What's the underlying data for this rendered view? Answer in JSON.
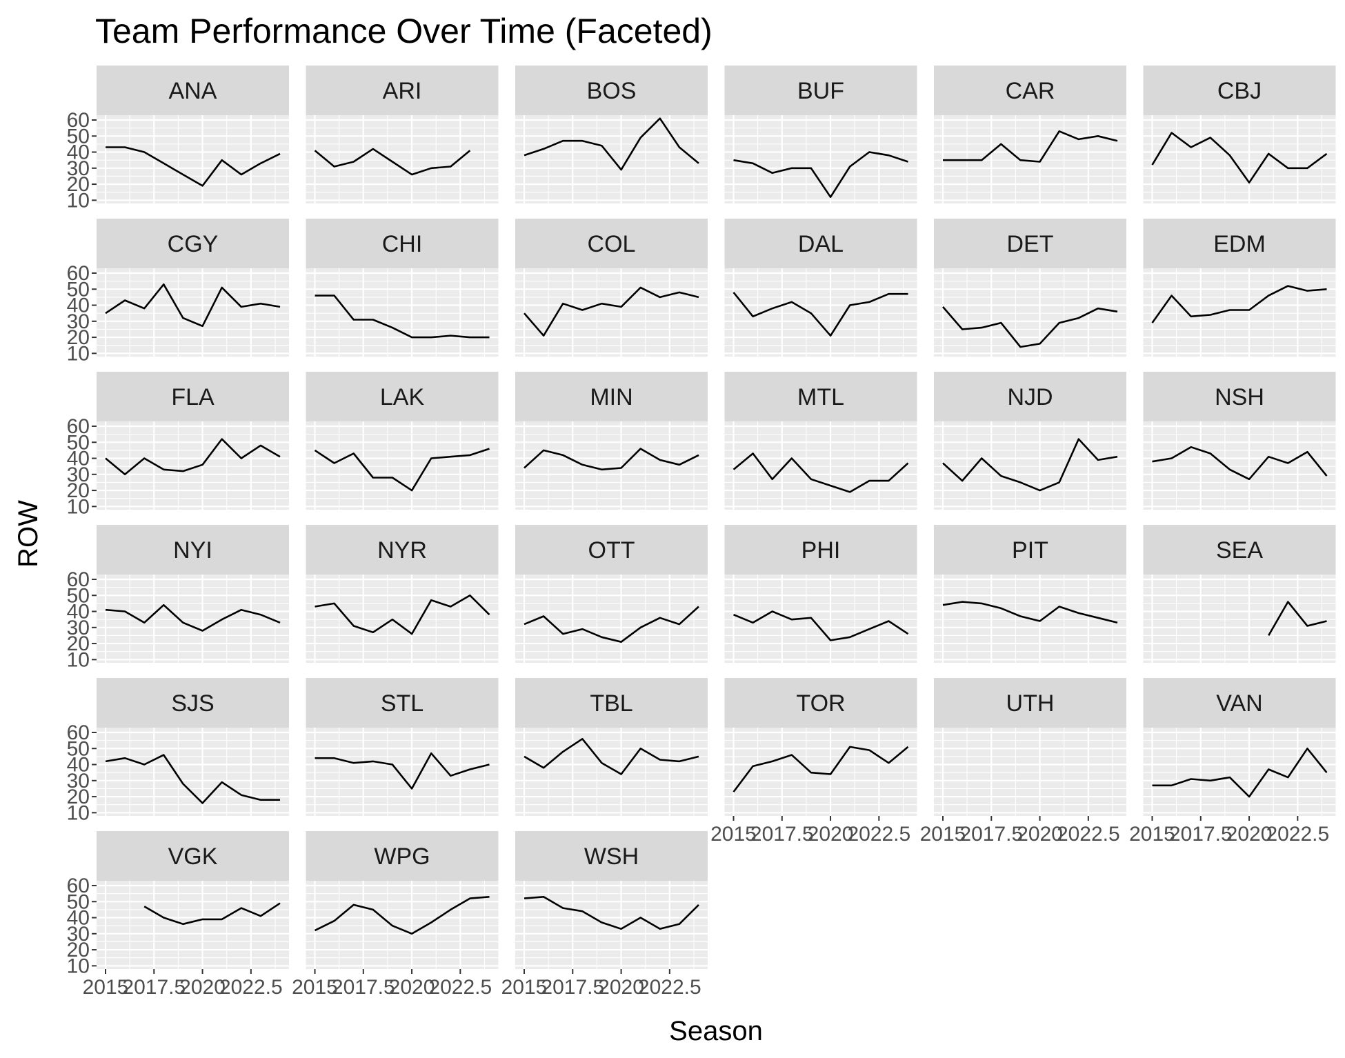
{
  "chart_data": {
    "type": "line",
    "title": "Team Performance Over Time (Faceted)",
    "xlabel": "Season",
    "ylabel": "ROW",
    "facet_layout": "6 columns, strip labels on top",
    "grid": true,
    "xlim": [
      2015,
      2024
    ],
    "ylim": [
      8,
      63
    ],
    "x_ticks": [
      2015,
      2017.5,
      2020,
      2022.5
    ],
    "x_tick_labels": [
      "2015",
      "2017.5",
      "2020",
      "2022.5"
    ],
    "y_ticks": [
      10,
      20,
      30,
      40,
      50,
      60
    ],
    "y_tick_labels": [
      "10",
      "20",
      "30",
      "40",
      "50",
      "60"
    ],
    "line_color": "#000000",
    "panel_background": "#ebebeb",
    "strip_background": "#d9d9d9",
    "x": [
      2015,
      2016,
      2017,
      2018,
      2019,
      2020,
      2021,
      2022,
      2023,
      2024
    ],
    "series": [
      {
        "name": "ANA",
        "values": [
          43,
          43,
          40,
          33,
          26,
          19,
          35,
          26,
          33,
          39
        ]
      },
      {
        "name": "ARI",
        "values": [
          41,
          31,
          34,
          42,
          34,
          26,
          30,
          31,
          41,
          null
        ]
      },
      {
        "name": "BOS",
        "values": [
          38,
          42,
          47,
          47,
          44,
          29,
          49,
          61,
          43,
          33
        ]
      },
      {
        "name": "BUF",
        "values": [
          35,
          33,
          27,
          30,
          30,
          12,
          31,
          40,
          38,
          34
        ]
      },
      {
        "name": "CAR",
        "values": [
          35,
          35,
          35,
          45,
          35,
          34,
          53,
          48,
          50,
          47
        ]
      },
      {
        "name": "CBJ",
        "values": [
          32,
          52,
          43,
          49,
          38,
          21,
          39,
          30,
          30,
          39
        ]
      },
      {
        "name": "CGY",
        "values": [
          35,
          43,
          38,
          53,
          32,
          27,
          51,
          39,
          41,
          39
        ]
      },
      {
        "name": "CHI",
        "values": [
          46,
          46,
          31,
          31,
          26,
          20,
          20,
          21,
          20,
          20
        ]
      },
      {
        "name": "COL",
        "values": [
          35,
          21,
          41,
          37,
          41,
          39,
          51,
          45,
          48,
          45
        ]
      },
      {
        "name": "DAL",
        "values": [
          48,
          33,
          38,
          42,
          35,
          21,
          40,
          42,
          47,
          47
        ]
      },
      {
        "name": "DET",
        "values": [
          39,
          25,
          26,
          29,
          14,
          16,
          29,
          32,
          38,
          36
        ]
      },
      {
        "name": "EDM",
        "values": [
          29,
          46,
          33,
          34,
          37,
          37,
          46,
          52,
          49,
          50
        ]
      },
      {
        "name": "FLA",
        "values": [
          40,
          30,
          40,
          33,
          32,
          36,
          52,
          40,
          48,
          41
        ]
      },
      {
        "name": "LAK",
        "values": [
          45,
          37,
          43,
          28,
          28,
          20,
          40,
          41,
          42,
          46
        ]
      },
      {
        "name": "MIN",
        "values": [
          34,
          45,
          42,
          36,
          33,
          34,
          46,
          39,
          36,
          42
        ]
      },
      {
        "name": "MTL",
        "values": [
          33,
          43,
          27,
          40,
          27,
          23,
          19,
          26,
          26,
          37
        ]
      },
      {
        "name": "NJD",
        "values": [
          37,
          26,
          40,
          29,
          25,
          20,
          25,
          52,
          39,
          41
        ]
      },
      {
        "name": "NSH",
        "values": [
          38,
          40,
          47,
          43,
          33,
          27,
          41,
          37,
          44,
          29
        ]
      },
      {
        "name": "NYI",
        "values": [
          41,
          40,
          33,
          44,
          33,
          28,
          35,
          41,
          38,
          33
        ]
      },
      {
        "name": "NYR",
        "values": [
          43,
          45,
          31,
          27,
          35,
          26,
          47,
          43,
          50,
          38
        ]
      },
      {
        "name": "OTT",
        "values": [
          32,
          37,
          26,
          29,
          24,
          21,
          30,
          36,
          32,
          43
        ]
      },
      {
        "name": "PHI",
        "values": [
          38,
          33,
          40,
          35,
          36,
          22,
          24,
          29,
          34,
          26
        ]
      },
      {
        "name": "PIT",
        "values": [
          44,
          46,
          45,
          42,
          37,
          34,
          43,
          39,
          36,
          33
        ]
      },
      {
        "name": "SEA",
        "values": [
          null,
          null,
          null,
          null,
          null,
          null,
          25,
          46,
          31,
          34
        ]
      },
      {
        "name": "SJS",
        "values": [
          42,
          44,
          40,
          46,
          28,
          16,
          29,
          21,
          18,
          18
        ]
      },
      {
        "name": "STL",
        "values": [
          44,
          44,
          41,
          42,
          40,
          25,
          47,
          33,
          37,
          40
        ]
      },
      {
        "name": "TBL",
        "values": [
          45,
          38,
          48,
          56,
          41,
          34,
          50,
          43,
          42,
          45
        ]
      },
      {
        "name": "TOR",
        "values": [
          23,
          39,
          42,
          46,
          35,
          34,
          51,
          49,
          41,
          51
        ]
      },
      {
        "name": "UTH",
        "values": [
          null,
          null,
          null,
          null,
          null,
          null,
          null,
          null,
          null,
          null
        ]
      },
      {
        "name": "VAN",
        "values": [
          27,
          27,
          31,
          30,
          32,
          20,
          37,
          32,
          50,
          35
        ]
      },
      {
        "name": "VGK",
        "values": [
          null,
          null,
          47,
          40,
          36,
          39,
          39,
          46,
          41,
          49
        ]
      },
      {
        "name": "WPG",
        "values": [
          32,
          38,
          48,
          45,
          35,
          30,
          37,
          45,
          52,
          53
        ]
      },
      {
        "name": "WSH",
        "values": [
          52,
          53,
          46,
          44,
          37,
          33,
          40,
          33,
          36,
          48
        ]
      }
    ]
  }
}
